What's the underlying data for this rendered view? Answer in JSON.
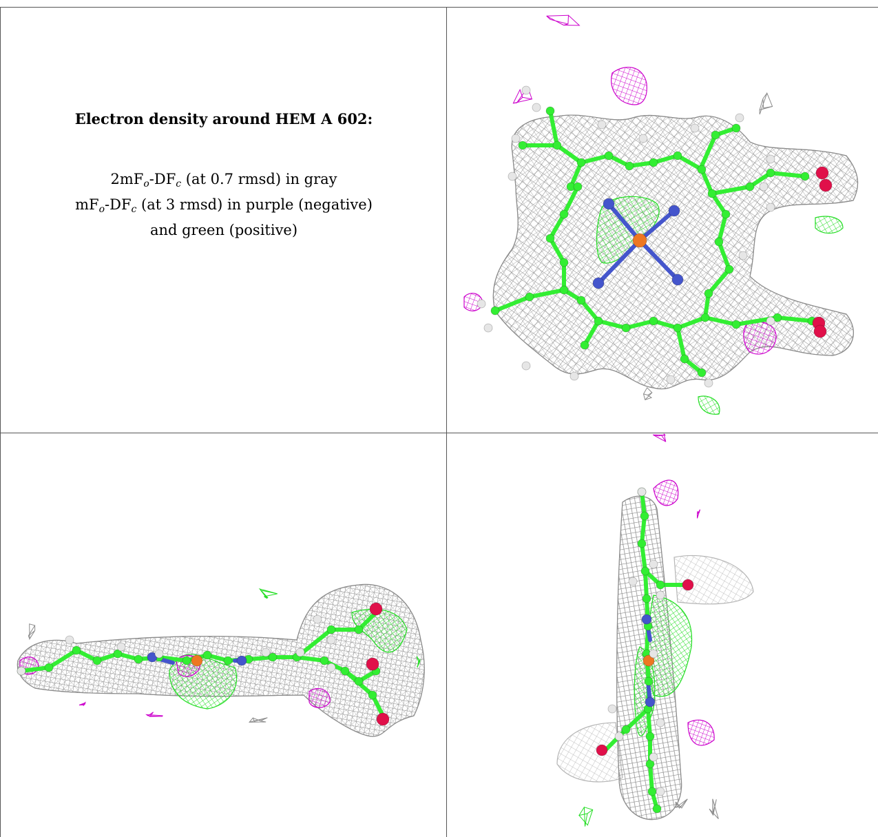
{
  "caption": {
    "title": "Electron density around HEM A 602:",
    "line1_prefix": "2mF",
    "line1_sub1": "o",
    "line1_mid": "-DF",
    "line1_sub2": "c",
    "line1_suffix": " (at 0.7 rmsd) in gray",
    "line2_prefix": "mF",
    "line2_sub1": "o",
    "line2_mid": "-DF",
    "line2_sub2": "c",
    "line2_suffix": " (at 3 rmsd) in purple (negative)",
    "line3": "and green (positive)"
  },
  "colors": {
    "mesh_2fofc": "#8a8a8a",
    "mesh_negative": "#cc00cc",
    "mesh_positive": "#22dd22",
    "carbon": "#33ee33",
    "nitrogen": "#4455cc",
    "oxygen": "#e0104a",
    "iron": "#ee7722",
    "hydrogen": "#e6e6e6"
  },
  "panels": [
    {
      "name": "top-view"
    },
    {
      "name": "side-view"
    },
    {
      "name": "edge-view"
    }
  ]
}
